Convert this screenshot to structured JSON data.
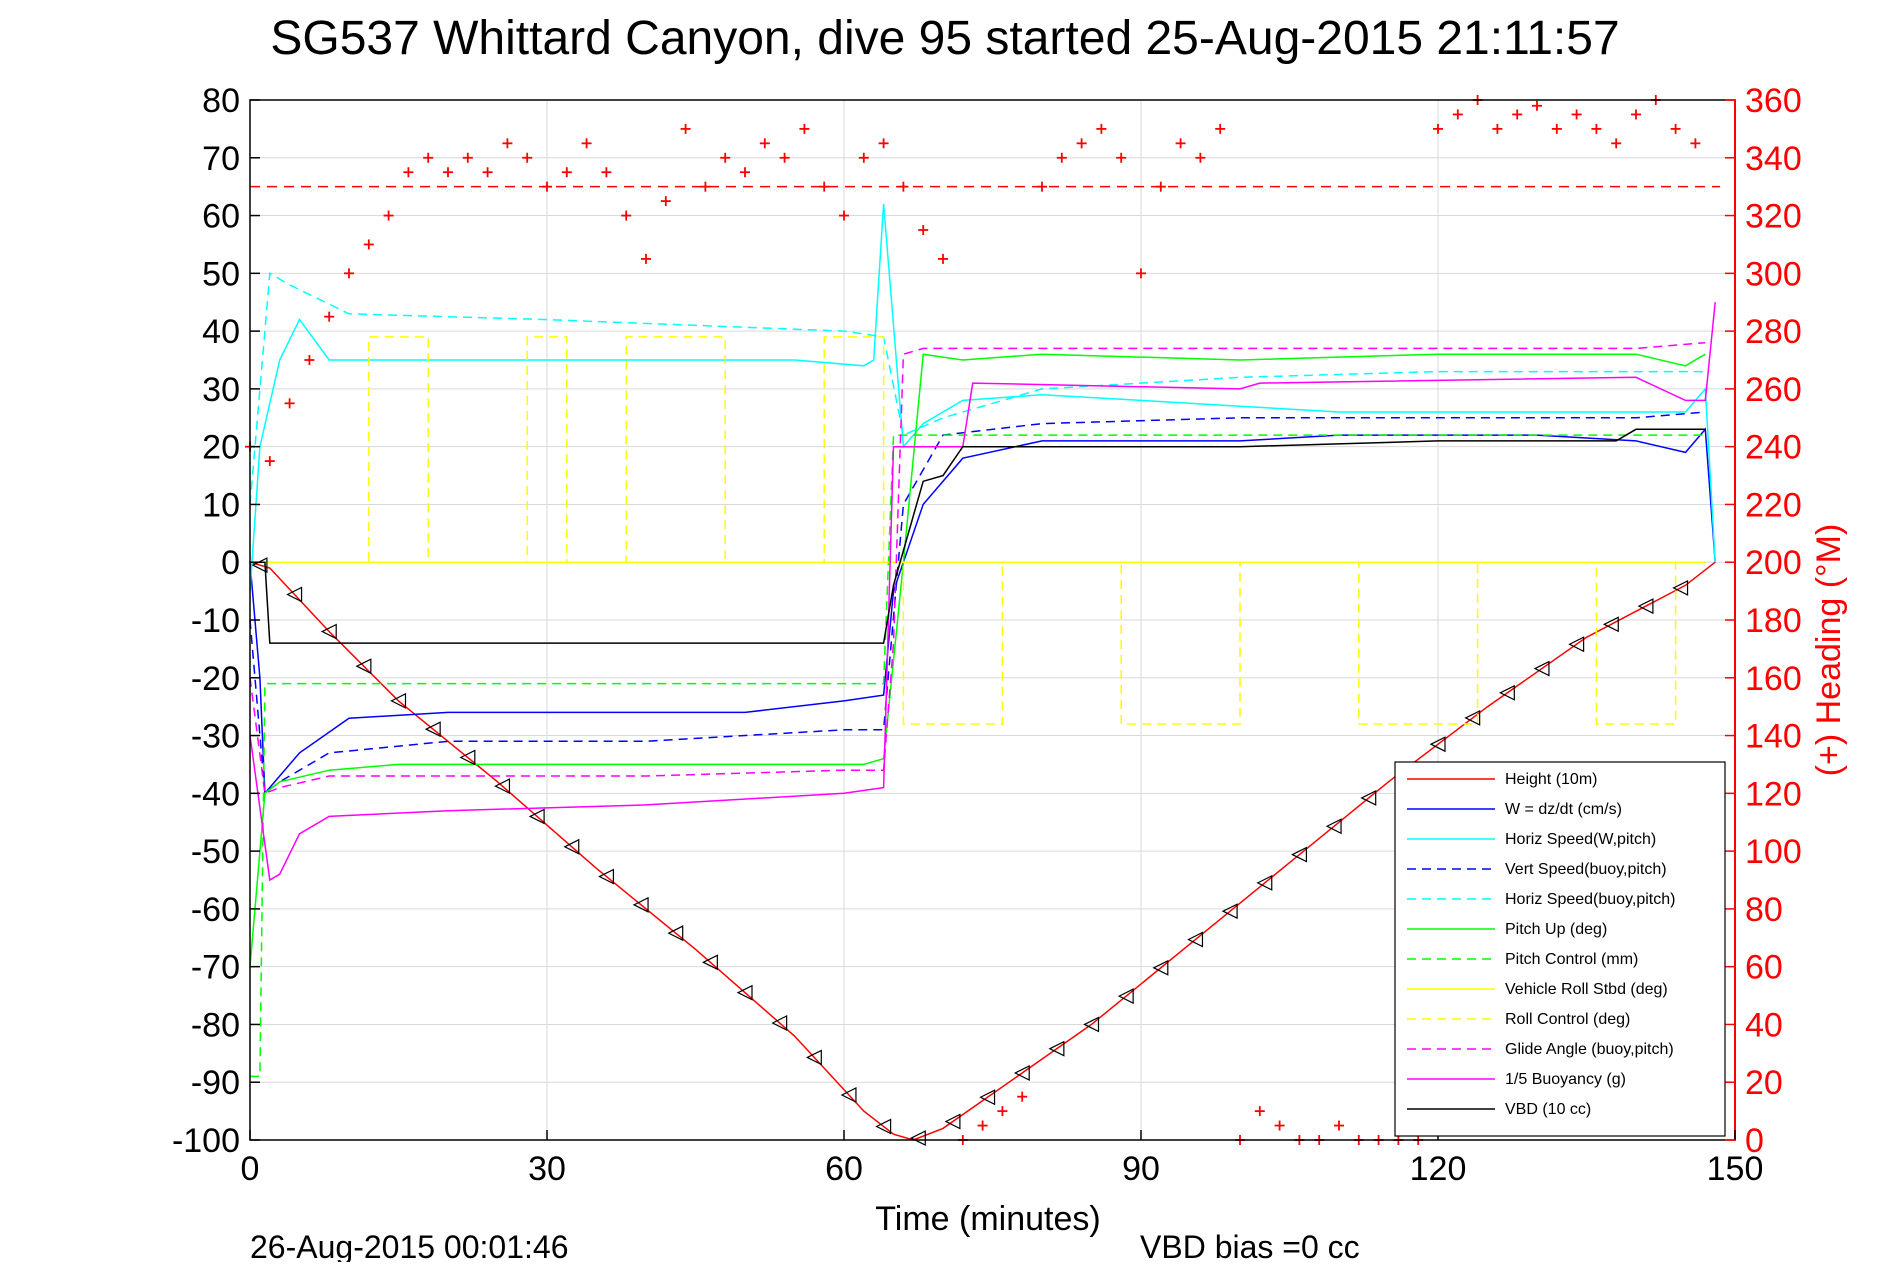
{
  "chart_data": {
    "type": "line",
    "title": "SG537 Whittard Canyon, dive 95 started 25-Aug-2015 21:11:57",
    "xlabel": "Time (minutes)",
    "ylabel": "",
    "ylabel_right": "(+) Heading (°M)",
    "xlim": [
      0,
      150
    ],
    "ylim": [
      -100,
      80
    ],
    "ylim_right": [
      0,
      360
    ],
    "xticks": [
      0,
      30,
      60,
      90,
      120,
      150
    ],
    "yticks": [
      80,
      70,
      60,
      50,
      40,
      30,
      20,
      10,
      0,
      -10,
      -20,
      -30,
      -40,
      -50,
      -60,
      -70,
      -80,
      -90,
      -100
    ],
    "yticks_right": [
      360,
      340,
      320,
      300,
      280,
      260,
      240,
      220,
      200,
      180,
      160,
      140,
      120,
      100,
      80,
      60,
      40,
      20,
      0
    ],
    "grid": true,
    "legend_position": "bottom-right",
    "footer_left": "26-Aug-2015 00:01:46",
    "footer_right": "VBD bias =0 cc",
    "colors": {
      "height": "#ff0000",
      "w": "#0000ff",
      "horiz_speed": "#00ffff",
      "pitch": "#00ff00",
      "roll": "#ffff00",
      "glide": "#ff00ff",
      "vbd": "#000000",
      "heading": "#ff0000",
      "axis_right": "#ff0000",
      "grid": "#d9d9d9"
    },
    "series": [
      {
        "name": "Height (10m)",
        "color": "#ff0000",
        "style": "solid",
        "x": [
          0,
          2,
          8,
          15,
          25,
          35,
          45,
          55,
          62,
          65,
          67,
          70,
          75,
          85,
          95,
          105,
          115,
          125,
          135,
          145,
          148
        ],
        "y": [
          0,
          -1,
          -12,
          -24,
          -38,
          -53,
          -67,
          -82,
          -95,
          -99,
          -100,
          -98,
          -92,
          -80,
          -66,
          -52,
          -38,
          -25,
          -13,
          -4,
          0
        ]
      },
      {
        "name": "W = dz/dt (cm/s)",
        "color": "#0000ff",
        "style": "solid",
        "x": [
          0,
          1,
          1.5,
          3,
          5,
          10,
          20,
          30,
          40,
          50,
          60,
          64,
          65,
          68,
          72,
          80,
          90,
          100,
          110,
          120,
          130,
          140,
          145,
          147,
          148
        ],
        "y": [
          0,
          -20,
          -40,
          -37,
          -33,
          -27,
          -26,
          -26,
          -26,
          -26,
          -24,
          -23,
          -5,
          10,
          18,
          21,
          21,
          21,
          22,
          22,
          22,
          21,
          19,
          23,
          0
        ]
      },
      {
        "name": "Horiz Speed(W,pitch)",
        "color": "#00ffff",
        "style": "solid",
        "x": [
          0,
          1,
          3,
          5,
          8,
          15,
          25,
          35,
          45,
          55,
          62,
          63,
          64,
          66,
          68,
          72,
          80,
          90,
          100,
          110,
          120,
          130,
          140,
          145,
          147,
          148
        ],
        "y": [
          -5,
          20,
          35,
          42,
          35,
          35,
          35,
          35,
          35,
          35,
          34,
          35,
          62,
          20,
          24,
          28,
          29,
          28,
          27,
          26,
          26,
          26,
          26,
          26,
          30,
          0
        ]
      },
      {
        "name": "Vert Speed(buoy,pitch)",
        "color": "#0000ff",
        "style": "dashed",
        "x": [
          0,
          1.5,
          3,
          8,
          20,
          40,
          60,
          64,
          66,
          70,
          80,
          100,
          120,
          140,
          147
        ],
        "y": [
          -10,
          -40,
          -38,
          -33,
          -31,
          -31,
          -29,
          -29,
          10,
          22,
          24,
          25,
          25,
          25,
          26
        ]
      },
      {
        "name": "Horiz Speed(buoy,pitch)",
        "color": "#00ffff",
        "style": "dashed",
        "x": [
          0,
          1.5,
          2,
          4,
          10,
          30,
          60,
          64,
          66,
          70,
          80,
          100,
          120,
          140,
          147
        ],
        "y": [
          10,
          40,
          50,
          48,
          43,
          42,
          40,
          39,
          22,
          25,
          30,
          32,
          33,
          33,
          33
        ]
      },
      {
        "name": "Pitch Up (deg)",
        "color": "#00ff00",
        "style": "solid",
        "x": [
          0,
          1.5,
          3,
          8,
          15,
          30,
          50,
          62,
          64,
          66,
          68,
          72,
          80,
          100,
          120,
          140,
          145,
          147
        ],
        "y": [
          -70,
          -40,
          -38,
          -36,
          -35,
          -35,
          -35,
          -35,
          -34,
          0,
          36,
          35,
          36,
          35,
          36,
          36,
          34,
          36
        ]
      },
      {
        "name": "Pitch Control (mm)",
        "color": "#00ff00",
        "style": "dashed",
        "x": [
          0,
          1,
          1.5,
          2,
          20,
          40,
          64,
          65,
          70,
          80,
          100,
          120,
          140,
          147
        ],
        "y": [
          -89,
          -89,
          -21,
          -21,
          -21,
          -21,
          -21,
          22,
          22,
          22,
          22,
          22,
          22,
          22
        ]
      },
      {
        "name": "Vehicle Roll Stbd (deg)",
        "color": "#ffff00",
        "style": "solid",
        "x": [
          0,
          10,
          20,
          40,
          60,
          64,
          66,
          80,
          100,
          120,
          140,
          147
        ],
        "y": [
          0,
          0,
          0,
          0,
          0,
          0,
          0,
          0,
          0,
          0,
          0,
          0
        ]
      },
      {
        "name": "Roll Control (deg)",
        "color": "#ffff00",
        "style": "dashed",
        "x": [
          0,
          12,
          12,
          18,
          18,
          28,
          28,
          32,
          32,
          38,
          38,
          48,
          48,
          58,
          58,
          64,
          64,
          66,
          66,
          76,
          76,
          88,
          88,
          100,
          100,
          112,
          112,
          124,
          124,
          136,
          136,
          144,
          144,
          147
        ],
        "y": [
          0,
          0,
          39,
          39,
          0,
          0,
          39,
          39,
          0,
          0,
          39,
          39,
          0,
          0,
          39,
          39,
          0,
          0,
          -28,
          -28,
          0,
          0,
          -28,
          -28,
          0,
          0,
          -28,
          -28,
          0,
          0,
          -28,
          -28,
          0,
          0
        ]
      },
      {
        "name": "Glide Angle (buoy,pitch)",
        "color": "#ff00ff",
        "style": "dashed",
        "x": [
          0,
          1.5,
          3,
          8,
          20,
          40,
          60,
          64,
          65,
          66,
          68,
          80,
          100,
          120,
          140,
          147
        ],
        "y": [
          -20,
          -40,
          -39,
          -37,
          -37,
          -37,
          -36,
          -36,
          -14,
          36,
          37,
          37,
          37,
          37,
          37,
          38
        ]
      },
      {
        "name": "1/5 Buoyancy (g)",
        "color": "#ff00ff",
        "style": "solid",
        "x": [
          0,
          2,
          3,
          5,
          8,
          20,
          40,
          60,
          64,
          65,
          72,
          73,
          100,
          102,
          140,
          145,
          147,
          148
        ],
        "y": [
          -30,
          -55,
          -54,
          -47,
          -44,
          -43,
          -42,
          -40,
          -39,
          20,
          20,
          31,
          30,
          31,
          32,
          28,
          28,
          45
        ]
      },
      {
        "name": "VBD (10 cc)",
        "color": "#000000",
        "style": "solid",
        "x": [
          0,
          1.5,
          2,
          64,
          65,
          68,
          70,
          72,
          80,
          100,
          120,
          138,
          140,
          145,
          147
        ],
        "y": [
          0,
          0,
          -14,
          -14,
          -4,
          14,
          15,
          20,
          20,
          20,
          21,
          21,
          23,
          23,
          23
        ]
      }
    ],
    "heading_series": {
      "name": "(+) Heading (°M)",
      "color": "#ff0000",
      "reference_line": 330,
      "x": [
        0,
        2,
        4,
        6,
        8,
        10,
        12,
        14,
        16,
        18,
        20,
        22,
        24,
        26,
        28,
        30,
        32,
        34,
        36,
        38,
        40,
        42,
        44,
        46,
        48,
        50,
        52,
        54,
        56,
        58,
        60,
        62,
        64,
        66,
        68,
        70,
        72,
        74,
        76,
        78,
        80,
        82,
        84,
        86,
        88,
        90,
        92,
        94,
        96,
        98,
        100,
        102,
        104,
        106,
        108,
        110,
        112,
        114,
        116,
        118,
        120,
        122,
        124,
        126,
        128,
        130,
        132,
        134,
        136,
        138,
        140,
        142,
        144,
        146
      ],
      "y": [
        240,
        235,
        255,
        270,
        285,
        300,
        310,
        320,
        335,
        340,
        335,
        340,
        335,
        345,
        340,
        330,
        335,
        345,
        335,
        320,
        305,
        325,
        350,
        330,
        340,
        335,
        345,
        340,
        350,
        330,
        320,
        340,
        345,
        330,
        315,
        305,
        0,
        5,
        10,
        15,
        330,
        340,
        345,
        350,
        340,
        300,
        330,
        345,
        340,
        350,
        0,
        10,
        5,
        0,
        0,
        5,
        0,
        0,
        0,
        0,
        350,
        355,
        360,
        350,
        355,
        358,
        350,
        355,
        350,
        345,
        355,
        360,
        350,
        345
      ]
    }
  }
}
